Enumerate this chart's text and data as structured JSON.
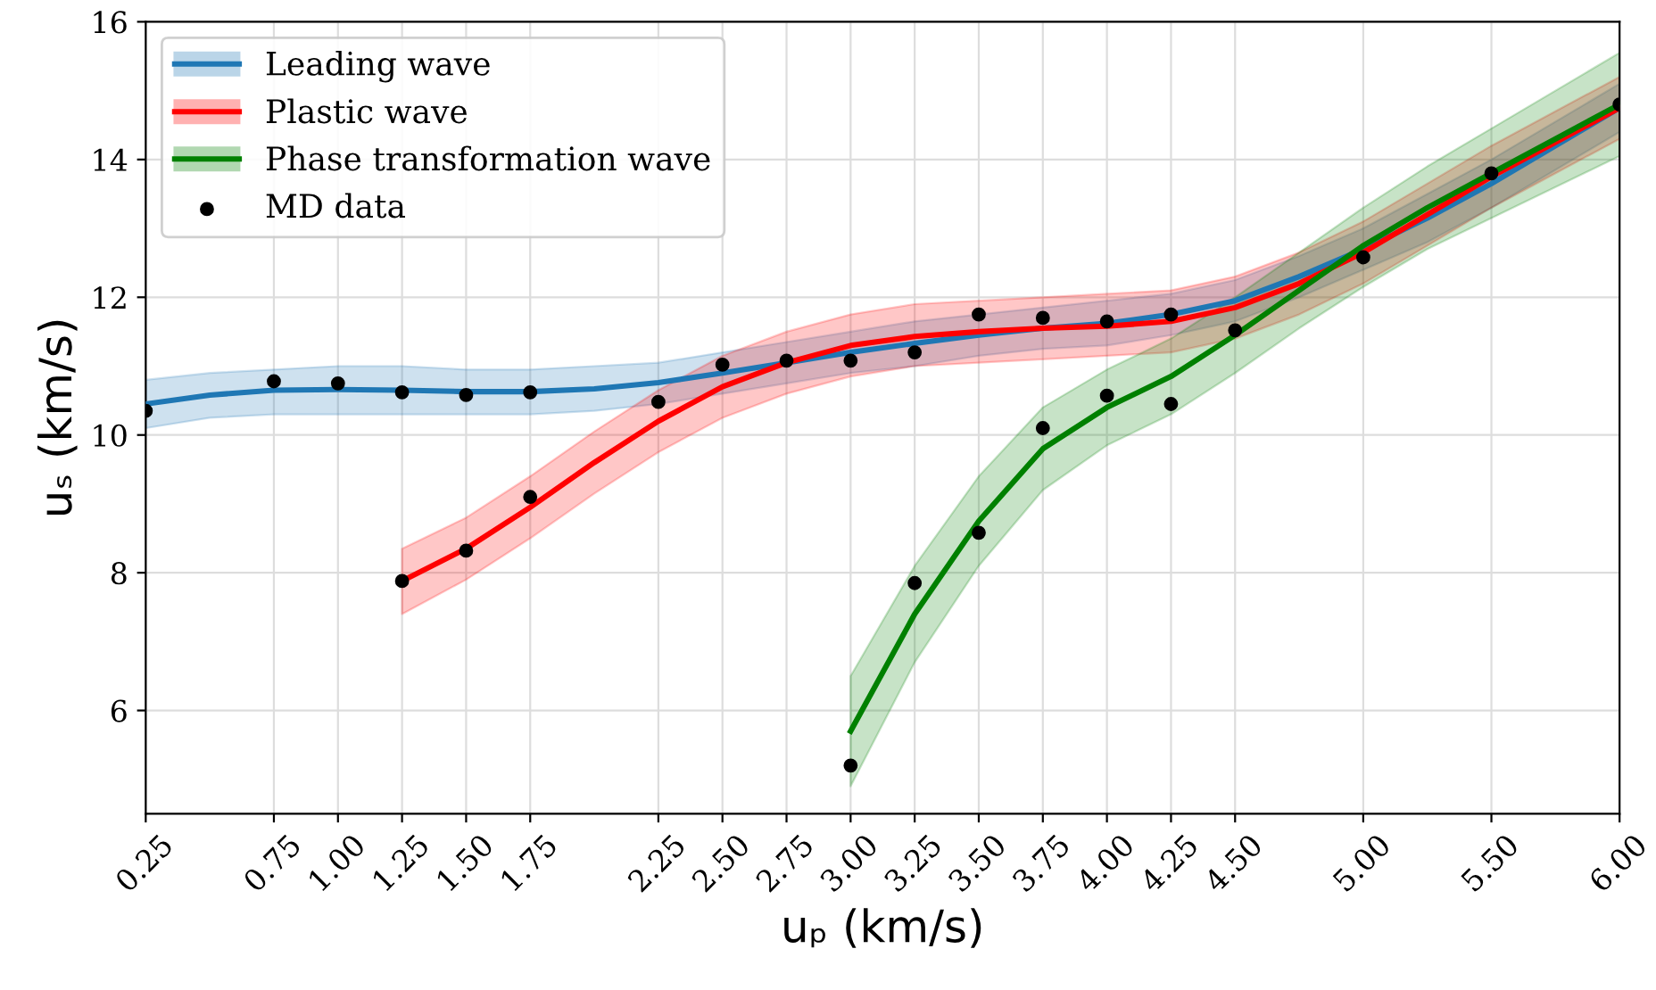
{
  "chart_data": {
    "type": "line",
    "xlabel": "uₚ (km/s)",
    "ylabel": "uₛ (km/s)",
    "xlim": [
      0.25,
      6.0
    ],
    "ylim": [
      4.5,
      16
    ],
    "xticks": [
      {
        "value": 0.25,
        "label": "0.25"
      },
      {
        "value": 0.75,
        "label": "0.75"
      },
      {
        "value": 1.0,
        "label": "1.00"
      },
      {
        "value": 1.25,
        "label": "1.25"
      },
      {
        "value": 1.5,
        "label": "1.50"
      },
      {
        "value": 1.75,
        "label": "1.75"
      },
      {
        "value": 2.25,
        "label": "2.25"
      },
      {
        "value": 2.5,
        "label": "2.50"
      },
      {
        "value": 2.75,
        "label": "2.75"
      },
      {
        "value": 3.0,
        "label": "3.00"
      },
      {
        "value": 3.25,
        "label": "3.25"
      },
      {
        "value": 3.5,
        "label": "3.50"
      },
      {
        "value": 3.75,
        "label": "3.75"
      },
      {
        "value": 4.0,
        "label": "4.00"
      },
      {
        "value": 4.25,
        "label": "4.25"
      },
      {
        "value": 4.5,
        "label": "4.50"
      },
      {
        "value": 5.0,
        "label": "5.00"
      },
      {
        "value": 5.5,
        "label": "5.50"
      },
      {
        "value": 6.0,
        "label": "6.00"
      }
    ],
    "yticks": [
      6,
      8,
      10,
      12,
      14,
      16
    ],
    "grid": true,
    "legend": "top left",
    "series": [
      {
        "name": "Leading wave",
        "color": "#1f77b4",
        "x": [
          0.25,
          0.5,
          0.75,
          1.0,
          1.25,
          1.5,
          1.75,
          2.0,
          2.25,
          2.5,
          2.75,
          3.0,
          3.25,
          3.5,
          3.75,
          4.0,
          4.25,
          4.5,
          4.75,
          5.0,
          5.25,
          5.5,
          5.75,
          6.0
        ],
        "values": [
          10.45,
          10.58,
          10.65,
          10.66,
          10.65,
          10.63,
          10.63,
          10.67,
          10.76,
          10.9,
          11.05,
          11.2,
          11.33,
          11.45,
          11.55,
          11.62,
          11.75,
          11.95,
          12.3,
          12.7,
          13.15,
          13.65,
          14.2,
          14.75
        ],
        "lower": [
          10.1,
          10.25,
          10.3,
          10.3,
          10.3,
          10.3,
          10.3,
          10.35,
          10.45,
          10.6,
          10.75,
          10.9,
          11.0,
          11.15,
          11.25,
          11.3,
          11.45,
          11.65,
          12.0,
          12.4,
          12.8,
          13.3,
          13.85,
          14.4
        ],
        "upper": [
          10.8,
          10.9,
          10.95,
          11.0,
          11.0,
          10.95,
          10.95,
          11.0,
          11.05,
          11.2,
          11.35,
          11.5,
          11.65,
          11.75,
          11.85,
          11.95,
          12.05,
          12.25,
          12.6,
          13.0,
          13.5,
          14.0,
          14.55,
          15.1
        ]
      },
      {
        "name": "Plastic wave",
        "color": "#ff0000",
        "x": [
          1.25,
          1.5,
          1.75,
          2.0,
          2.25,
          2.5,
          2.75,
          3.0,
          3.25,
          3.5,
          3.75,
          4.0,
          4.25,
          4.5,
          4.75,
          5.0,
          5.25,
          5.5,
          5.75,
          6.0
        ],
        "values": [
          7.88,
          8.35,
          8.95,
          9.6,
          10.2,
          10.7,
          11.05,
          11.3,
          11.43,
          11.5,
          11.55,
          11.58,
          11.65,
          11.85,
          12.2,
          12.65,
          13.2,
          13.75,
          14.25,
          14.75
        ],
        "lower": [
          7.4,
          7.9,
          8.5,
          9.15,
          9.75,
          10.25,
          10.6,
          10.85,
          11.0,
          11.05,
          11.1,
          11.15,
          11.2,
          11.4,
          11.75,
          12.2,
          12.75,
          13.3,
          13.8,
          14.3
        ],
        "upper": [
          8.35,
          8.8,
          9.4,
          10.05,
          10.65,
          11.15,
          11.5,
          11.75,
          11.9,
          11.95,
          12.0,
          12.05,
          12.1,
          12.3,
          12.65,
          13.1,
          13.65,
          14.2,
          14.7,
          15.2
        ]
      },
      {
        "name": "Phase transformation wave",
        "color": "#008000",
        "x": [
          3.0,
          3.25,
          3.5,
          3.75,
          4.0,
          4.25,
          4.5,
          4.75,
          5.0,
          5.25,
          5.5,
          5.75,
          6.0
        ],
        "values": [
          5.7,
          7.4,
          8.75,
          9.8,
          10.4,
          10.85,
          11.45,
          12.1,
          12.75,
          13.3,
          13.8,
          14.3,
          14.8
        ],
        "lower": [
          4.9,
          6.7,
          8.1,
          9.2,
          9.85,
          10.3,
          10.9,
          11.55,
          12.15,
          12.7,
          13.15,
          13.6,
          14.05
        ],
        "upper": [
          6.5,
          8.1,
          9.4,
          10.4,
          10.95,
          11.4,
          12.0,
          12.65,
          13.3,
          13.9,
          14.45,
          15.0,
          15.55
        ]
      },
      {
        "name": "MD data",
        "color": "#000000",
        "type": "scatter",
        "x": [
          0.25,
          0.75,
          1.0,
          1.25,
          1.25,
          1.5,
          1.5,
          1.75,
          1.75,
          2.25,
          2.5,
          2.75,
          3.0,
          3.0,
          3.25,
          3.25,
          3.5,
          3.5,
          3.75,
          3.75,
          4.0,
          4.0,
          4.25,
          4.25,
          4.5,
          5.0,
          5.5,
          6.0
        ],
        "values": [
          10.35,
          10.78,
          10.75,
          10.62,
          7.88,
          10.58,
          8.32,
          10.62,
          9.1,
          10.48,
          11.02,
          11.08,
          11.08,
          5.2,
          11.2,
          7.85,
          11.75,
          8.58,
          11.7,
          10.1,
          11.65,
          10.57,
          11.75,
          10.45,
          11.52,
          12.58,
          13.8,
          14.8
        ]
      }
    ]
  }
}
